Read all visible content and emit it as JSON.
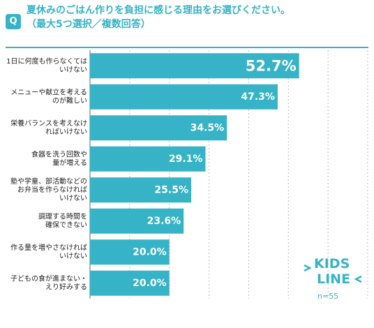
{
  "question_badge": "Q",
  "title": {
    "line1": "夏休みのごはん作りを負担に感じる理由をお選びください。",
    "line2": "（最大5つ選択／複数回答）"
  },
  "sample_size": "n=55",
  "logo_text": {
    "top": "KIDS",
    "bottom": "LINE"
  },
  "colors": {
    "accent": "#36b3c6",
    "bar": "#36b3c6",
    "grid": "#bbbbbb"
  },
  "chart_data": {
    "type": "bar",
    "orientation": "horizontal",
    "categories": [
      [
        "1日に何度も作らなくては",
        "いけない"
      ],
      [
        "メニューや献立を考える",
        "のが難しい"
      ],
      [
        "栄養バランスを考えなけ",
        "ればいけない"
      ],
      [
        "食器を洗う回数や",
        "量が増える"
      ],
      [
        "塾や学童、部活動などの",
        "お弁当を作らなければ",
        "いけない"
      ],
      [
        "調理する時間を",
        "確保できない"
      ],
      [
        "作る量を増やさなければ",
        "いけない"
      ],
      [
        "子どもの食が進まない・",
        "えり好みする"
      ]
    ],
    "values": [
      52.7,
      47.3,
      34.5,
      29.1,
      25.5,
      23.6,
      20.0,
      20.0
    ],
    "value_labels": [
      "52.7%",
      "47.3%",
      "34.5%",
      "29.1%",
      "25.5%",
      "23.6%",
      "20.0%",
      "20.0%"
    ],
    "xlim": [
      0,
      70
    ],
    "gridlines": [
      0,
      10,
      20,
      30,
      40,
      50,
      60,
      70
    ],
    "title": "",
    "xlabel": "",
    "ylabel": ""
  }
}
